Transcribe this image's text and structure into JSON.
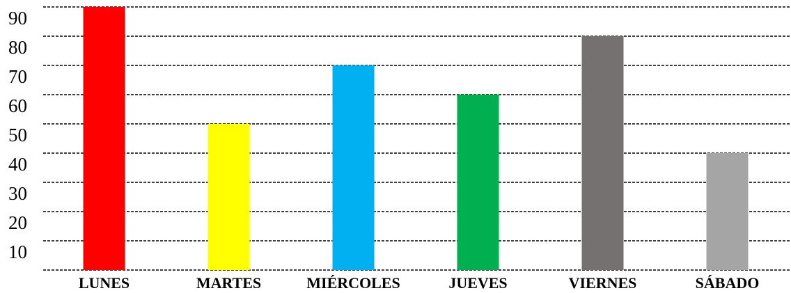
{
  "chart_data": {
    "type": "bar",
    "title": "",
    "xlabel": "",
    "ylabel": "",
    "categories": [
      "LUNES",
      "MARTES",
      "MIÉRCOLES",
      "JUEVES",
      "VIERNES",
      "SÁBADO"
    ],
    "values": [
      90,
      50,
      70,
      60,
      80,
      40
    ],
    "colors": [
      "#ff0000",
      "#ffff00",
      "#00b0f0",
      "#00b050",
      "#767171",
      "#a5a5a5"
    ],
    "ylim": [
      0,
      90
    ],
    "yticks": [
      10,
      20,
      30,
      40,
      50,
      60,
      70,
      80,
      90
    ],
    "grid": true,
    "legend": "none"
  }
}
